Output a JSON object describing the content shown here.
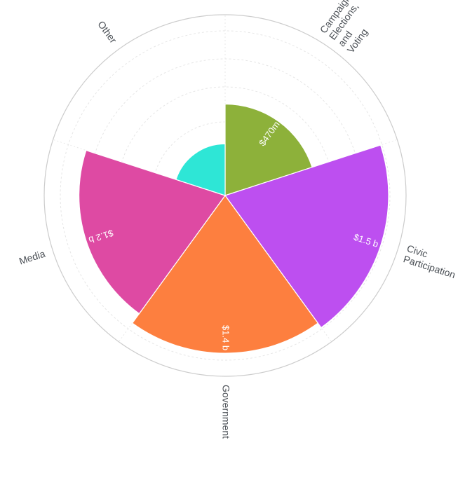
{
  "chart_data": {
    "type": "polar-area",
    "title": "",
    "categories": [
      "Campaigns, Elections, and Voting",
      "Civic Participation",
      "Government",
      "Media",
      "Other"
    ],
    "category_label_lines": [
      [
        "Campaigns,",
        "Elections,",
        "and",
        "Voting"
      ],
      [
        "Civic",
        "Participation"
      ],
      [
        "Government"
      ],
      [
        "Media"
      ],
      [
        "Other"
      ]
    ],
    "values": [
      470,
      1500,
      1400,
      1200,
      150
    ],
    "value_unit": "millions USD",
    "value_labels": [
      "$470m",
      "$1.5 b",
      "$1.4 b",
      "$1.2 b",
      ""
    ],
    "colors": [
      "#8db13a",
      "#bd4ff0",
      "#fd7f3f",
      "#de4aa3",
      "#2ee6d6"
    ],
    "rmax": 1500,
    "grid": true,
    "legend": "none"
  }
}
